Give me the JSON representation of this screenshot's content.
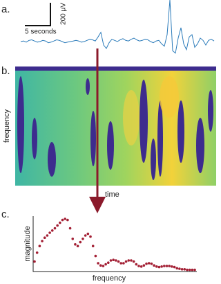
{
  "chart_data": [
    {
      "type": "line",
      "panel_label": "a.",
      "scale_x_label": "5 seconds",
      "scale_y_label": "200 μV",
      "color": "#2b7bba",
      "ylim": [
        -240,
        360
      ],
      "values": [
        0,
        5,
        -5,
        10,
        15,
        5,
        -5,
        0,
        10,
        5,
        -10,
        -5,
        5,
        15,
        10,
        0,
        -10,
        -5,
        0,
        5,
        10,
        5,
        -5,
        0,
        10,
        20,
        15,
        5,
        40,
        80,
        -30,
        -60,
        -10,
        20,
        10,
        0,
        15,
        25,
        10,
        5,
        20,
        30,
        15,
        5,
        10,
        20,
        15,
        0,
        -10,
        5,
        10,
        -20,
        -40,
        60,
        360,
        -80,
        -100,
        30,
        120,
        -20,
        -70,
        40,
        60,
        -50,
        -20,
        30,
        10,
        -30,
        10,
        20,
        5
      ]
    },
    {
      "type": "heatmap",
      "panel_label": "b.",
      "ylabel": "frequency",
      "xlabel": "time"
    },
    {
      "type": "scatter",
      "panel_label": "c.",
      "ylabel": "magnitude",
      "xlabel": "frequency",
      "color": "#a31f34",
      "ylim": [
        0,
        1
      ],
      "values": [
        0.18,
        0.34,
        0.46,
        0.55,
        0.61,
        0.65,
        0.7,
        0.74,
        0.78,
        0.83,
        0.88,
        0.93,
        0.95,
        0.93,
        0.78,
        0.59,
        0.49,
        0.46,
        0.53,
        0.59,
        0.65,
        0.68,
        0.63,
        0.46,
        0.28,
        0.15,
        0.11,
        0.1,
        0.13,
        0.16,
        0.2,
        0.21,
        0.2,
        0.18,
        0.15,
        0.15,
        0.18,
        0.2,
        0.2,
        0.18,
        0.13,
        0.1,
        0.09,
        0.11,
        0.14,
        0.15,
        0.14,
        0.11,
        0.09,
        0.08,
        0.09,
        0.1,
        0.1,
        0.1,
        0.09,
        0.08,
        0.06,
        0.05,
        0.04,
        0.04,
        0.03,
        0.03,
        0.03,
        0.03
      ]
    }
  ]
}
